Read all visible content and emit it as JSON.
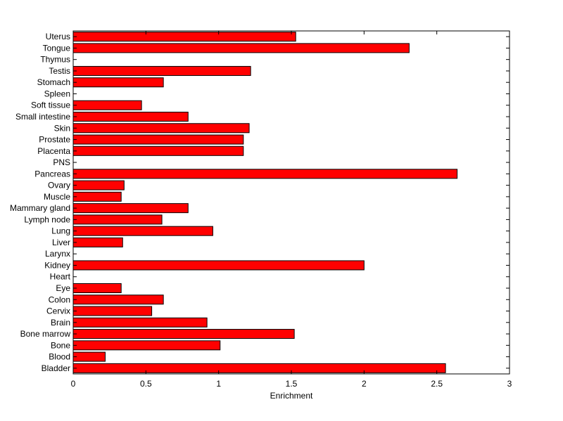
{
  "chart_data": {
    "type": "bar",
    "orientation": "horizontal",
    "title": "",
    "xlabel": "Enrichment",
    "ylabel": "",
    "xlim": [
      0,
      3
    ],
    "x_ticks": [
      "0",
      "0.5",
      "1",
      "1.5",
      "2",
      "2.5",
      "3"
    ],
    "grid": false,
    "legend": "none",
    "bar_color": "#ff0000",
    "edge_color": "#000000",
    "categories": [
      "Bladder",
      "Blood",
      "Bone",
      "Bone marrow",
      "Brain",
      "Cervix",
      "Colon",
      "Eye",
      "Heart",
      "Kidney",
      "Larynx",
      "Liver",
      "Lung",
      "Lymph node",
      "Mammary gland",
      "Muscle",
      "Ovary",
      "Pancreas",
      "PNS",
      "Placenta",
      "Prostate",
      "Skin",
      "Small intestine",
      "Soft tissue",
      "Spleen",
      "Stomach",
      "Testis",
      "Thymus",
      "Tongue",
      "Uterus"
    ],
    "values": [
      2.56,
      0.22,
      1.01,
      1.52,
      0.92,
      0.54,
      0.62,
      0.33,
      0,
      2.0,
      0,
      0.34,
      0.96,
      0.61,
      0.79,
      0.33,
      0.35,
      2.64,
      0,
      1.17,
      1.17,
      1.21,
      0.79,
      0.47,
      0,
      0.62,
      1.22,
      0,
      2.31,
      1.53
    ]
  }
}
